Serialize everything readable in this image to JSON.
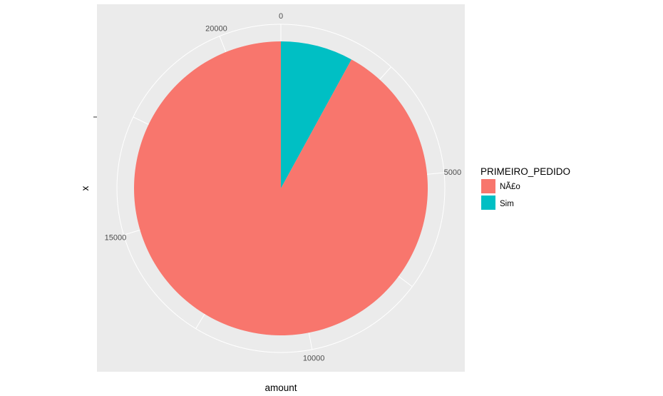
{
  "chart_data": {
    "type": "pie",
    "title": "",
    "xlabel": "amount",
    "ylabel": "x",
    "categories": [
      "NÃ£o",
      "Sim"
    ],
    "values": [
      19600,
      1700
    ],
    "total": 21300,
    "theta_ticks": [
      0,
      5000,
      10000,
      15000,
      20000
    ],
    "tick_labels": [
      "0",
      "5000",
      "10000",
      "15000",
      "20000"
    ],
    "legend": {
      "title": "PRIMEIRO_PEDIDO",
      "position": "right",
      "entries": [
        {
          "label": "NÃ£o",
          "color": "#F8766D"
        },
        {
          "label": "Sim",
          "color": "#00BFC4"
        }
      ]
    },
    "colors": {
      "NÃ£o": "#F8766D",
      "Sim": "#00BFC4",
      "panel": "#EBEBEB",
      "grid": "#FFFFFF"
    },
    "grid": true,
    "stacking_order_from_zero": [
      "Sim",
      "NÃ£o"
    ]
  }
}
